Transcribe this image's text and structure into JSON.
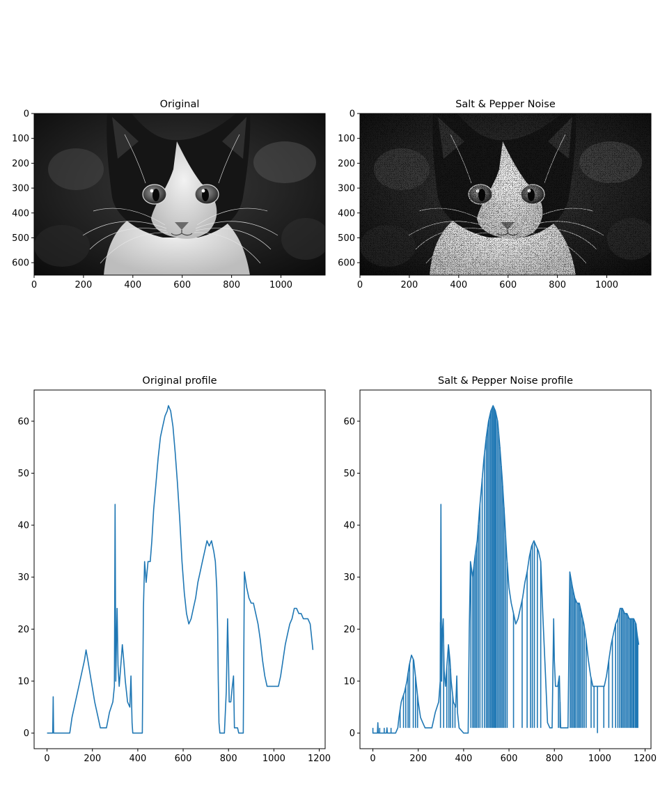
{
  "chart_data": [
    {
      "type": "image",
      "title": "Original",
      "image_description": "grayscale photo of a black and white kitten",
      "xlim": [
        0,
        1179
      ],
      "ylim": [
        650,
        0
      ],
      "xticks": [
        0,
        200,
        400,
        600,
        800,
        1000
      ],
      "yticks": [
        0,
        100,
        200,
        300,
        400,
        500,
        600
      ],
      "noise": false
    },
    {
      "type": "image",
      "title": "Salt & Pepper Noise",
      "image_description": "same kitten photo with salt and pepper noise",
      "xlim": [
        0,
        1179
      ],
      "ylim": [
        650,
        0
      ],
      "xticks": [
        0,
        200,
        400,
        600,
        800,
        1000
      ],
      "yticks": [
        0,
        100,
        200,
        300,
        400,
        500,
        600
      ],
      "noise": true
    },
    {
      "type": "line",
      "title": "Original profile",
      "xlim": [
        -57,
        1226
      ],
      "ylim": [
        -3,
        66
      ],
      "xticks": [
        0,
        200,
        400,
        600,
        800,
        1000,
        1200
      ],
      "yticks": [
        0,
        10,
        20,
        30,
        40,
        50,
        60
      ],
      "color": "#1f77b4",
      "points": [
        [
          0,
          0
        ],
        [
          25,
          0
        ],
        [
          27,
          7
        ],
        [
          29,
          0
        ],
        [
          100,
          0
        ],
        [
          110,
          3
        ],
        [
          125,
          6
        ],
        [
          145,
          10
        ],
        [
          165,
          14
        ],
        [
          172,
          16
        ],
        [
          180,
          14
        ],
        [
          195,
          10
        ],
        [
          210,
          6
        ],
        [
          225,
          3
        ],
        [
          235,
          1
        ],
        [
          262,
          1
        ],
        [
          275,
          4
        ],
        [
          290,
          6
        ],
        [
          297,
          9
        ],
        [
          300,
          44
        ],
        [
          303,
          10
        ],
        [
          307,
          20
        ],
        [
          309,
          24
        ],
        [
          313,
          13
        ],
        [
          318,
          9
        ],
        [
          325,
          13
        ],
        [
          332,
          17
        ],
        [
          338,
          14
        ],
        [
          345,
          10
        ],
        [
          355,
          6
        ],
        [
          365,
          5
        ],
        [
          370,
          11
        ],
        [
          375,
          2
        ],
        [
          378,
          0
        ],
        [
          415,
          0
        ],
        [
          420,
          0
        ],
        [
          425,
          24
        ],
        [
          430,
          33
        ],
        [
          437,
          29
        ],
        [
          445,
          33
        ],
        [
          455,
          33
        ],
        [
          462,
          37
        ],
        [
          470,
          43
        ],
        [
          480,
          48
        ],
        [
          490,
          53
        ],
        [
          500,
          57
        ],
        [
          510,
          59
        ],
        [
          520,
          61
        ],
        [
          530,
          62
        ],
        [
          535,
          63
        ],
        [
          545,
          62
        ],
        [
          555,
          59
        ],
        [
          565,
          54
        ],
        [
          575,
          48
        ],
        [
          585,
          41
        ],
        [
          595,
          33
        ],
        [
          605,
          27
        ],
        [
          615,
          23
        ],
        [
          625,
          21
        ],
        [
          635,
          22
        ],
        [
          645,
          24
        ],
        [
          655,
          26
        ],
        [
          665,
          29
        ],
        [
          675,
          31
        ],
        [
          685,
          33
        ],
        [
          695,
          35
        ],
        [
          705,
          37
        ],
        [
          715,
          36
        ],
        [
          725,
          37
        ],
        [
          735,
          35
        ],
        [
          742,
          33
        ],
        [
          748,
          28
        ],
        [
          752,
          20
        ],
        [
          755,
          10
        ],
        [
          758,
          2
        ],
        [
          762,
          0
        ],
        [
          782,
          0
        ],
        [
          790,
          8
        ],
        [
          796,
          22
        ],
        [
          800,
          14
        ],
        [
          803,
          6
        ],
        [
          810,
          6
        ],
        [
          817,
          9
        ],
        [
          822,
          11
        ],
        [
          826,
          1
        ],
        [
          840,
          1
        ],
        [
          845,
          0
        ],
        [
          865,
          0
        ],
        [
          870,
          31
        ],
        [
          880,
          28
        ],
        [
          890,
          26
        ],
        [
          900,
          25
        ],
        [
          910,
          25
        ],
        [
          920,
          23
        ],
        [
          930,
          21
        ],
        [
          940,
          18
        ],
        [
          950,
          14
        ],
        [
          960,
          11
        ],
        [
          970,
          9
        ],
        [
          980,
          9
        ],
        [
          990,
          9
        ],
        [
          1000,
          9
        ],
        [
          1010,
          9
        ],
        [
          1020,
          9
        ],
        [
          1030,
          11
        ],
        [
          1040,
          14
        ],
        [
          1050,
          17
        ],
        [
          1060,
          19
        ],
        [
          1070,
          21
        ],
        [
          1080,
          22
        ],
        [
          1090,
          24
        ],
        [
          1100,
          24
        ],
        [
          1110,
          23
        ],
        [
          1120,
          23
        ],
        [
          1130,
          22
        ],
        [
          1140,
          22
        ],
        [
          1150,
          22
        ],
        [
          1160,
          21
        ],
        [
          1165,
          19
        ],
        [
          1172,
          16
        ]
      ]
    },
    {
      "type": "line",
      "title": "Salt & Pepper Noise profile",
      "xlim": [
        -57,
        1226
      ],
      "ylim": [
        -3,
        66
      ],
      "xticks": [
        0,
        200,
        400,
        600,
        800,
        1000,
        1200
      ],
      "yticks": [
        0,
        10,
        20,
        30,
        40,
        50,
        60
      ],
      "color": "#1f77b4",
      "points": [
        [
          0,
          1
        ],
        [
          0,
          0
        ],
        [
          20,
          0
        ],
        [
          22,
          2
        ],
        [
          24,
          0
        ],
        [
          60,
          0
        ],
        [
          62,
          1
        ],
        [
          64,
          0
        ],
        [
          100,
          0
        ],
        [
          110,
          1
        ],
        [
          115,
          3
        ],
        [
          125,
          6
        ],
        [
          140,
          8
        ],
        [
          150,
          10
        ],
        [
          160,
          13
        ],
        [
          170,
          15
        ],
        [
          180,
          14
        ],
        [
          190,
          10
        ],
        [
          200,
          6
        ],
        [
          210,
          3
        ],
        [
          220,
          2
        ],
        [
          230,
          1
        ],
        [
          260,
          1
        ],
        [
          275,
          4
        ],
        [
          290,
          6
        ],
        [
          297,
          10
        ],
        [
          300,
          44
        ],
        [
          303,
          10
        ],
        [
          307,
          20
        ],
        [
          310,
          22
        ],
        [
          314,
          12
        ],
        [
          320,
          9
        ],
        [
          328,
          14
        ],
        [
          333,
          17
        ],
        [
          340,
          14
        ],
        [
          345,
          10
        ],
        [
          355,
          6
        ],
        [
          365,
          5
        ],
        [
          370,
          11
        ],
        [
          373,
          4
        ],
        [
          380,
          1
        ],
        [
          400,
          0
        ],
        [
          420,
          0
        ],
        [
          425,
          20
        ],
        [
          430,
          33
        ],
        [
          440,
          30
        ],
        [
          450,
          34
        ],
        [
          460,
          37
        ],
        [
          470,
          43
        ],
        [
          480,
          48
        ],
        [
          490,
          53
        ],
        [
          500,
          57
        ],
        [
          510,
          60
        ],
        [
          520,
          62
        ],
        [
          530,
          63
        ],
        [
          540,
          62
        ],
        [
          550,
          60
        ],
        [
          560,
          55
        ],
        [
          570,
          49
        ],
        [
          580,
          42
        ],
        [
          590,
          34
        ],
        [
          600,
          28
        ],
        [
          610,
          25
        ],
        [
          620,
          23
        ],
        [
          630,
          21
        ],
        [
          640,
          22
        ],
        [
          650,
          24
        ],
        [
          660,
          26
        ],
        [
          670,
          29
        ],
        [
          680,
          31
        ],
        [
          690,
          34
        ],
        [
          700,
          36
        ],
        [
          710,
          37
        ],
        [
          720,
          36
        ],
        [
          730,
          35
        ],
        [
          740,
          33
        ],
        [
          750,
          22
        ],
        [
          760,
          12
        ],
        [
          770,
          2
        ],
        [
          780,
          1
        ],
        [
          790,
          1
        ],
        [
          797,
          22
        ],
        [
          800,
          14
        ],
        [
          805,
          9
        ],
        [
          815,
          9
        ],
        [
          822,
          11
        ],
        [
          828,
          1
        ],
        [
          860,
          1
        ],
        [
          868,
          31
        ],
        [
          880,
          28
        ],
        [
          890,
          26
        ],
        [
          900,
          25
        ],
        [
          910,
          25
        ],
        [
          920,
          23
        ],
        [
          930,
          21
        ],
        [
          940,
          18
        ],
        [
          950,
          14
        ],
        [
          960,
          11
        ],
        [
          970,
          9
        ],
        [
          980,
          9
        ],
        [
          990,
          9
        ],
        [
          1000,
          9
        ],
        [
          1010,
          9
        ],
        [
          1020,
          9
        ],
        [
          1030,
          11
        ],
        [
          1040,
          14
        ],
        [
          1050,
          17
        ],
        [
          1060,
          19
        ],
        [
          1070,
          21
        ],
        [
          1080,
          22
        ],
        [
          1090,
          24
        ],
        [
          1100,
          24
        ],
        [
          1110,
          23
        ],
        [
          1120,
          23
        ],
        [
          1130,
          22
        ],
        [
          1140,
          22
        ],
        [
          1150,
          22
        ],
        [
          1160,
          21
        ],
        [
          1165,
          19
        ],
        [
          1172,
          17
        ]
      ],
      "noise_spikes": [
        [
          30,
          1
        ],
        [
          50,
          1
        ],
        [
          80,
          1
        ],
        [
          120,
          1
        ],
        [
          135,
          1
        ],
        [
          145,
          1
        ],
        [
          155,
          1
        ],
        [
          162,
          1
        ],
        [
          178,
          1
        ],
        [
          188,
          1
        ],
        [
          197,
          1
        ],
        [
          298,
          1
        ],
        [
          312,
          1
        ],
        [
          326,
          1
        ],
        [
          335,
          1
        ],
        [
          342,
          1
        ],
        [
          352,
          1
        ],
        [
          362,
          1
        ],
        [
          432,
          1
        ],
        [
          440,
          1
        ],
        [
          446,
          1
        ],
        [
          452,
          1
        ],
        [
          458,
          1
        ],
        [
          465,
          1
        ],
        [
          472,
          1
        ],
        [
          482,
          1
        ],
        [
          492,
          1
        ],
        [
          500,
          1
        ],
        [
          506,
          1
        ],
        [
          512,
          1
        ],
        [
          518,
          1
        ],
        [
          523,
          1
        ],
        [
          528,
          1
        ],
        [
          533,
          1
        ],
        [
          538,
          1
        ],
        [
          542,
          1
        ],
        [
          548,
          1
        ],
        [
          554,
          1
        ],
        [
          560,
          1
        ],
        [
          566,
          1
        ],
        [
          572,
          1
        ],
        [
          578,
          1
        ],
        [
          585,
          1
        ],
        [
          592,
          1
        ],
        [
          620,
          1
        ],
        [
          658,
          1
        ],
        [
          680,
          1
        ],
        [
          695,
          1
        ],
        [
          703,
          1
        ],
        [
          712,
          1
        ],
        [
          725,
          1
        ],
        [
          740,
          1
        ],
        [
          818,
          1
        ],
        [
          825,
          1
        ],
        [
          870,
          1
        ],
        [
          876,
          1
        ],
        [
          882,
          1
        ],
        [
          888,
          1
        ],
        [
          893,
          1
        ],
        [
          900,
          1
        ],
        [
          906,
          1
        ],
        [
          912,
          1
        ],
        [
          918,
          1
        ],
        [
          925,
          1
        ],
        [
          932,
          1
        ],
        [
          940,
          1
        ],
        [
          962,
          1
        ],
        [
          975,
          1
        ],
        [
          990,
          0
        ],
        [
          1018,
          1
        ],
        [
          1040,
          1
        ],
        [
          1056,
          1
        ],
        [
          1070,
          1
        ],
        [
          1080,
          1
        ],
        [
          1088,
          1
        ],
        [
          1095,
          1
        ],
        [
          1100,
          1
        ],
        [
          1106,
          1
        ],
        [
          1112,
          1
        ],
        [
          1118,
          1
        ],
        [
          1124,
          1
        ],
        [
          1130,
          1
        ],
        [
          1136,
          1
        ],
        [
          1140,
          1
        ],
        [
          1146,
          1
        ],
        [
          1150,
          1
        ],
        [
          1156,
          1
        ],
        [
          1160,
          1
        ],
        [
          1164,
          1
        ],
        [
          1168,
          1
        ]
      ]
    }
  ]
}
